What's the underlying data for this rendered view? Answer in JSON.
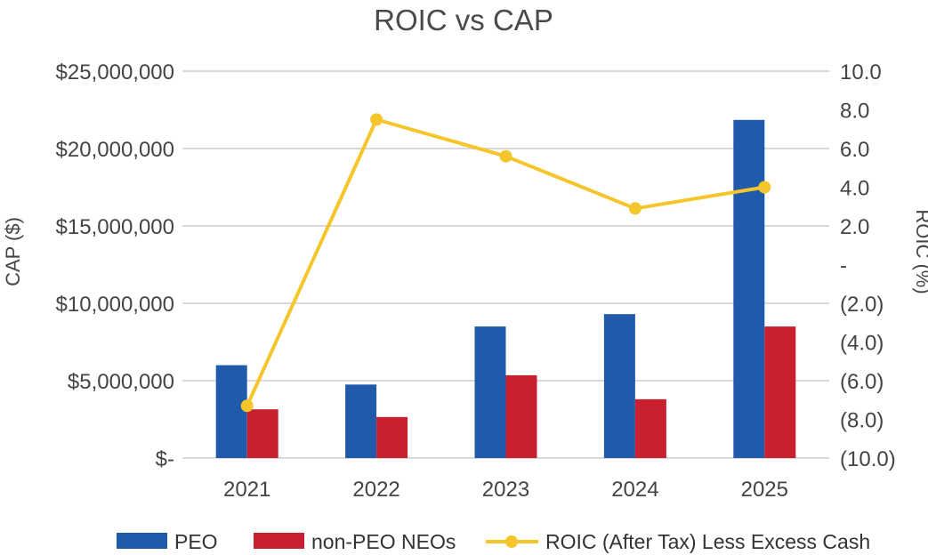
{
  "chart_data": {
    "type": "bar",
    "title": "ROIC vs CAP",
    "categories": [
      "2021",
      "2022",
      "2023",
      "2024",
      "2025"
    ],
    "series": [
      {
        "name": "PEO",
        "kind": "bar",
        "axis": "left",
        "color": "#1F5BAA",
        "values": [
          6000000,
          4750000,
          8500000,
          9300000,
          21850000
        ]
      },
      {
        "name": "non-PEO NEOs",
        "kind": "bar",
        "axis": "left",
        "color": "#C8202F",
        "values": [
          3150000,
          2650000,
          5350000,
          3800000,
          8500000
        ]
      },
      {
        "name": "ROIC (After Tax) Less Excess Cash",
        "kind": "line",
        "axis": "right",
        "color": "#F5C52C",
        "values": [
          -7.3,
          7.5,
          5.6,
          2.9,
          4.0
        ]
      }
    ],
    "ylabel": "CAP ($)",
    "y2label": "ROIC (%)",
    "ylim": [
      0,
      25000000
    ],
    "y2lim": [
      -10,
      10
    ],
    "yticks": [
      "$-",
      "$5,000,000",
      "$10,000,000",
      "$15,000,000",
      "$20,000,000",
      "$25,000,000"
    ],
    "y2ticks": [
      "(10.0)",
      "(8.0)",
      "(6.0)",
      "(4.0)",
      "(2.0)",
      "-",
      "2.0",
      "4.0",
      "6.0",
      "8.0",
      "10.0"
    ],
    "grid": true,
    "legend_position": "bottom"
  }
}
